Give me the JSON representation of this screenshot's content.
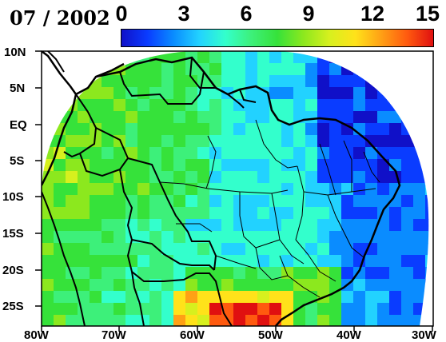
{
  "title": "07 / 2002",
  "colorbar": {
    "ticks": [
      "0",
      "3",
      "6",
      "9",
      "12",
      "15"
    ],
    "range": [
      0,
      15
    ],
    "gradient": [
      "#1010c8",
      "#0a3cff",
      "#0a8cff",
      "#22d2ff",
      "#33ffcc",
      "#3df07a",
      "#36e23a",
      "#8ce81e",
      "#d7f01e",
      "#ffe21a",
      "#ffa015",
      "#ff5a0f",
      "#e01010"
    ]
  },
  "axes": {
    "lat_labels": [
      "10N",
      "5N",
      "EQ",
      "5S",
      "10S",
      "15S",
      "20S",
      "25S"
    ],
    "lon_labels": [
      "80W",
      "70W",
      "60W",
      "50W",
      "40W",
      "30W"
    ]
  },
  "map": {
    "projection": "disk-clipped lat/lon grid",
    "field_description": "gridded scalar field 0-15 over South America",
    "colors": {
      "low": "#0a3cff",
      "mid": "#22d2ff",
      "green": "#36e23a",
      "high": "#ff5a0f",
      "max": "#e01010"
    }
  }
}
